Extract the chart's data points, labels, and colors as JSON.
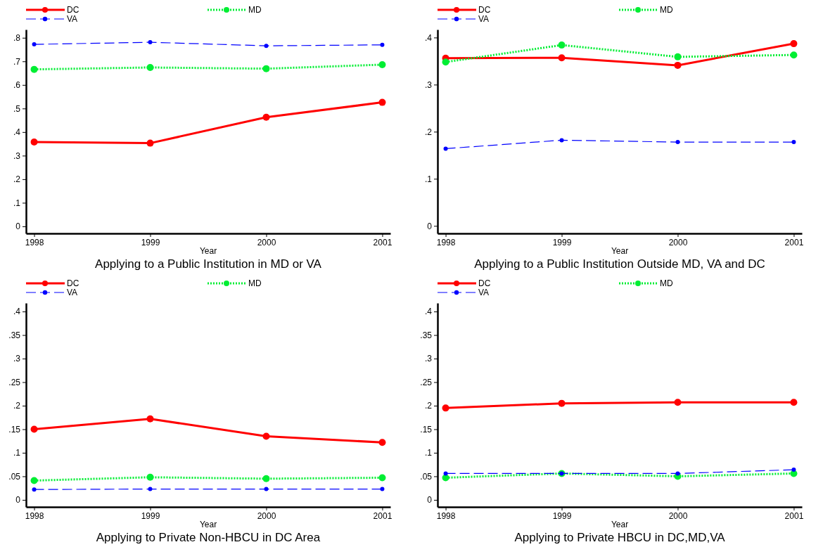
{
  "chart_data": [
    {
      "type": "line",
      "title": "Applying to a Public Institution in MD or VA",
      "xlabel": "Year",
      "x": [
        1998,
        1999,
        2000,
        2001
      ],
      "xlim": [
        1997.93,
        2001.07
      ],
      "xticks": [
        1998,
        1999,
        2000,
        2001
      ],
      "ylim": [
        -0.03,
        0.835
      ],
      "yticks": [
        {
          "value": 0,
          "label": "0"
        },
        {
          "value": 0.1,
          "label": ".1"
        },
        {
          "value": 0.2,
          "label": ".2"
        },
        {
          "value": 0.3,
          "label": ".3"
        },
        {
          "value": 0.4,
          "label": ".4"
        },
        {
          "value": 0.5,
          "label": ".5"
        },
        {
          "value": 0.6,
          "label": ".6"
        },
        {
          "value": 0.7,
          "label": ".7"
        },
        {
          "value": 0.8,
          "label": ".8"
        }
      ],
      "grid": false,
      "legend": "top",
      "marker": "circle",
      "series": [
        {
          "name": "DC",
          "color": "#ff0000",
          "line_style": "solid",
          "values": [
            0.358,
            0.353,
            0.463,
            0.526
          ]
        },
        {
          "name": "MD",
          "color": "#00ee33",
          "line_style": "dotted",
          "values": [
            0.666,
            0.674,
            0.669,
            0.686
          ]
        },
        {
          "name": "VA",
          "color": "#0000ff",
          "line_style": "dashed",
          "values": [
            0.772,
            0.781,
            0.766,
            0.77
          ]
        }
      ]
    },
    {
      "type": "line",
      "title": "Applying to a Public Institution Outside MD, VA and DC",
      "xlabel": "Year",
      "x": [
        1998,
        1999,
        2000,
        2001
      ],
      "xlim": [
        1997.93,
        2001.07
      ],
      "xticks": [
        1998,
        1999,
        2000,
        2001
      ],
      "ylim": [
        -0.016,
        0.417
      ],
      "yticks": [
        {
          "value": 0,
          "label": "0"
        },
        {
          "value": 0.1,
          "label": ".1"
        },
        {
          "value": 0.2,
          "label": ".2"
        },
        {
          "value": 0.3,
          "label": ".3"
        },
        {
          "value": 0.4,
          "label": ".4"
        }
      ],
      "grid": false,
      "legend": "top",
      "marker": "circle",
      "series": [
        {
          "name": "DC",
          "color": "#ff0000",
          "line_style": "solid",
          "values": [
            0.356,
            0.357,
            0.341,
            0.387
          ]
        },
        {
          "name": "MD",
          "color": "#00ee33",
          "line_style": "dotted",
          "values": [
            0.348,
            0.384,
            0.359,
            0.363
          ]
        },
        {
          "name": "VA",
          "color": "#0000ff",
          "line_style": "dashed",
          "values": [
            0.164,
            0.182,
            0.178,
            0.178
          ]
        }
      ]
    },
    {
      "type": "line",
      "title": "Applying to Private Non-HBCU in DC Area",
      "xlabel": "Year",
      "x": [
        1998,
        1999,
        2000,
        2001
      ],
      "xlim": [
        1997.93,
        2001.07
      ],
      "xticks": [
        1998,
        1999,
        2000,
        2001
      ],
      "ylim": [
        -0.015,
        0.418
      ],
      "yticks": [
        {
          "value": 0,
          "label": "0"
        },
        {
          "value": 0.05,
          "label": ".05"
        },
        {
          "value": 0.1,
          "label": ".1"
        },
        {
          "value": 0.15,
          "label": ".15"
        },
        {
          "value": 0.2,
          "label": ".2"
        },
        {
          "value": 0.25,
          "label": ".25"
        },
        {
          "value": 0.3,
          "label": ".3"
        },
        {
          "value": 0.35,
          "label": ".35"
        },
        {
          "value": 0.4,
          "label": ".4"
        }
      ],
      "grid": false,
      "legend": "top",
      "marker": "circle",
      "series": [
        {
          "name": "DC",
          "color": "#ff0000",
          "line_style": "solid",
          "values": [
            0.15,
            0.172,
            0.135,
            0.122
          ]
        },
        {
          "name": "MD",
          "color": "#00ee33",
          "line_style": "dotted",
          "values": [
            0.041,
            0.048,
            0.045,
            0.047
          ]
        },
        {
          "name": "VA",
          "color": "#0000ff",
          "line_style": "dashed",
          "values": [
            0.022,
            0.023,
            0.023,
            0.023
          ]
        }
      ]
    },
    {
      "type": "line",
      "title": "Applying to Private HBCU in DC,MD,VA",
      "xlabel": "Year",
      "x": [
        1998,
        1999,
        2000,
        2001
      ],
      "xlim": [
        1997.93,
        2001.07
      ],
      "xticks": [
        1998,
        1999,
        2000,
        2001
      ],
      "ylim": [
        -0.015,
        0.418
      ],
      "yticks": [
        {
          "value": 0,
          "label": "0"
        },
        {
          "value": 0.05,
          "label": ".05"
        },
        {
          "value": 0.1,
          "label": ".1"
        },
        {
          "value": 0.15,
          "label": ".15"
        },
        {
          "value": 0.2,
          "label": ".2"
        },
        {
          "value": 0.25,
          "label": ".25"
        },
        {
          "value": 0.3,
          "label": ".3"
        },
        {
          "value": 0.35,
          "label": ".35"
        },
        {
          "value": 0.4,
          "label": ".4"
        }
      ],
      "grid": false,
      "legend": "top",
      "marker": "circle",
      "series": [
        {
          "name": "DC",
          "color": "#ff0000",
          "line_style": "solid",
          "values": [
            0.195,
            0.205,
            0.207,
            0.207
          ]
        },
        {
          "name": "MD",
          "color": "#00ee33",
          "line_style": "dotted",
          "values": [
            0.047,
            0.056,
            0.05,
            0.056
          ]
        },
        {
          "name": "VA",
          "color": "#0000ff",
          "line_style": "dashed",
          "values": [
            0.056,
            0.056,
            0.056,
            0.064
          ]
        }
      ]
    }
  ]
}
